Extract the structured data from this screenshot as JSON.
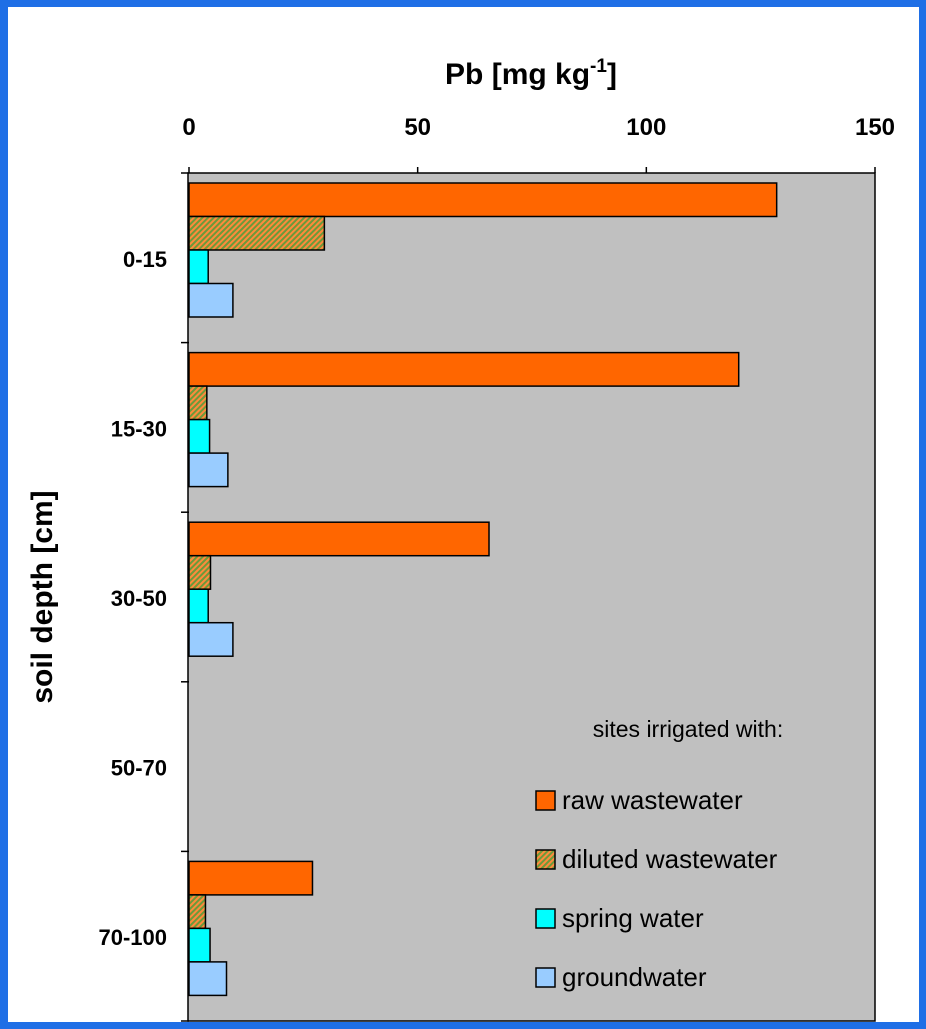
{
  "chart_data": {
    "type": "bar",
    "orientation": "horizontal",
    "title": "Pb [mg kg-1]",
    "title_main": "Pb [mg kg",
    "title_sup": "-1",
    "title_end": "]",
    "ylabel": "soil depth [cm]",
    "categories": [
      "0-15",
      "15-30",
      "30-50",
      "50-70",
      "70-100"
    ],
    "xlim": [
      0,
      150
    ],
    "x_ticks": [
      0,
      50,
      100,
      150
    ],
    "legend_title": "sites irrigated with:",
    "legend_position": "bottom-right",
    "grid": false,
    "plot_background": "#c0c0c0",
    "series": [
      {
        "name": "raw wastewater",
        "color": "#ff6600",
        "pattern": "solid",
        "values": [
          128.5,
          120.2,
          65.6,
          null,
          27.0
        ]
      },
      {
        "name": "diluted wastewater",
        "color": "#c8a078",
        "pattern": "hatched-green-orange",
        "values": [
          29.6,
          3.9,
          4.7,
          null,
          3.6
        ]
      },
      {
        "name": "spring water",
        "color": "#00ffff",
        "pattern": "solid",
        "values": [
          4.2,
          4.5,
          4.2,
          null,
          4.6
        ]
      },
      {
        "name": "groundwater",
        "color": "#99ccff",
        "pattern": "solid",
        "values": [
          9.6,
          8.5,
          9.6,
          null,
          8.2
        ]
      }
    ]
  }
}
